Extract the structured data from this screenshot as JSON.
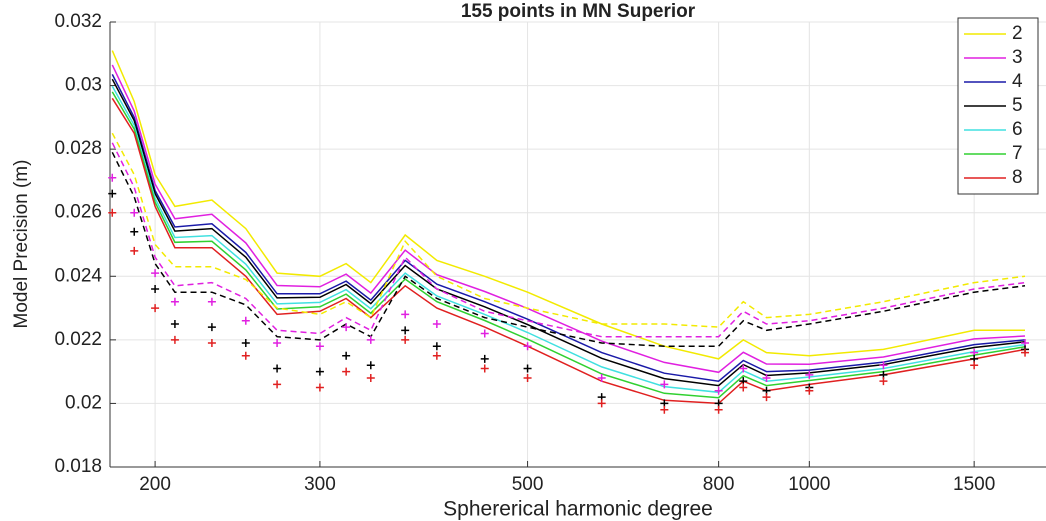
{
  "chart_data": {
    "type": "line",
    "title": "155 points in MN Superior",
    "xlabel": "Sphererical harmonic degree",
    "ylabel": "Model Precision (m)",
    "xscale": "log",
    "grid": true,
    "legend": "upper right",
    "x": [
      180,
      190,
      200,
      210,
      230,
      250,
      270,
      300,
      320,
      340,
      370,
      400,
      450,
      500,
      600,
      700,
      800,
      850,
      900,
      1000,
      1200,
      1500,
      1700
    ],
    "xlim": [
      179,
      1790
    ],
    "xticks": [
      200,
      300,
      500,
      800,
      1000,
      1500
    ],
    "ylim": [
      0.018,
      0.032
    ],
    "yticks": [
      0.018,
      0.02,
      0.022,
      0.024,
      0.026,
      0.028,
      0.03,
      0.032
    ],
    "series": [
      {
        "name": "2",
        "color": "#f2ea00",
        "style": "solid",
        "values": [
          0.0311,
          0.0295,
          0.0272,
          0.0262,
          0.0264,
          0.0255,
          0.0241,
          0.024,
          0.0244,
          0.0238,
          0.0253,
          0.0245,
          0.024,
          0.0235,
          0.0225,
          0.0218,
          0.0214,
          0.022,
          0.0216,
          0.0215,
          0.0217,
          0.0223,
          0.0223
        ]
      },
      {
        "name": "3",
        "color": "#e020e0",
        "style": "solid",
        "values": [
          0.03065,
          0.0292,
          0.0269,
          0.02581,
          0.02595,
          0.02505,
          0.02371,
          0.02367,
          0.02407,
          0.02347,
          0.02482,
          0.02405,
          0.02352,
          0.02299,
          0.02196,
          0.02129,
          0.02098,
          0.02161,
          0.02124,
          0.02123,
          0.02146,
          0.02203,
          0.02212
        ]
      },
      {
        "name": "4",
        "color": "#1a1aa8",
        "style": "solid",
        "values": [
          0.03035,
          0.029,
          0.0267,
          0.02555,
          0.02565,
          0.02475,
          0.02345,
          0.02345,
          0.02385,
          0.02325,
          0.0245,
          0.02375,
          0.0232,
          0.02265,
          0.0216,
          0.02095,
          0.0207,
          0.02135,
          0.021,
          0.02105,
          0.0213,
          0.02185,
          0.022
        ]
      },
      {
        "name": "5",
        "color": "#000000",
        "style": "solid",
        "values": [
          0.0302,
          0.0289,
          0.0266,
          0.02542,
          0.0255,
          0.0246,
          0.02332,
          0.02334,
          0.02374,
          0.02314,
          0.02434,
          0.0236,
          0.02304,
          0.02248,
          0.02142,
          0.02078,
          0.02056,
          0.02122,
          0.02088,
          0.02096,
          0.02122,
          0.02176,
          0.02194
        ]
      },
      {
        "name": "6",
        "color": "#40e0e0",
        "style": "solid",
        "values": [
          0.02998,
          0.02875,
          0.02645,
          0.02522,
          0.02528,
          0.02438,
          0.02313,
          0.02318,
          0.02358,
          0.02298,
          0.0241,
          0.02338,
          0.0228,
          0.02223,
          0.02115,
          0.02053,
          0.02035,
          0.02103,
          0.0207,
          0.02083,
          0.0211,
          0.02163,
          0.02185
        ]
      },
      {
        "name": "7",
        "color": "#30d030",
        "style": "solid",
        "values": [
          0.0298,
          0.02863,
          0.02633,
          0.02507,
          0.0251,
          0.0242,
          0.02297,
          0.02304,
          0.02344,
          0.02284,
          0.02391,
          0.0232,
          0.02261,
          0.02202,
          0.02093,
          0.02032,
          0.02018,
          0.02087,
          0.02056,
          0.02072,
          0.021,
          0.02152,
          0.02178
        ]
      },
      {
        "name": "8",
        "color": "#e02020",
        "style": "solid",
        "values": [
          0.0296,
          0.0285,
          0.0262,
          0.0249,
          0.0249,
          0.024,
          0.0228,
          0.0229,
          0.0233,
          0.0227,
          0.0237,
          0.023,
          0.0224,
          0.0218,
          0.0207,
          0.0201,
          0.02,
          0.0207,
          0.0204,
          0.0206,
          0.0209,
          0.0214,
          0.0217
        ]
      },
      {
        "color": "#f2ea00",
        "style": "dashed",
        "values": [
          0.0285,
          0.0272,
          0.025,
          0.0243,
          0.0243,
          0.0239,
          0.023,
          0.0228,
          0.0232,
          0.0227,
          0.0251,
          0.024,
          0.0233,
          0.023,
          0.0225,
          0.0225,
          0.0224,
          0.0232,
          0.0227,
          0.0228,
          0.0232,
          0.0238,
          0.024
        ]
      },
      {
        "color": "#e020e0",
        "style": "dashed",
        "values": [
          0.0282,
          0.0268,
          0.0246,
          0.0237,
          0.0238,
          0.0233,
          0.0223,
          0.0222,
          0.0227,
          0.0223,
          0.0246,
          0.0236,
          0.0229,
          0.0226,
          0.0221,
          0.0221,
          0.0221,
          0.0229,
          0.0225,
          0.0226,
          0.023,
          0.0236,
          0.0238
        ]
      },
      {
        "color": "#000000",
        "style": "dashed",
        "values": [
          0.0279,
          0.0265,
          0.0244,
          0.0235,
          0.0235,
          0.0231,
          0.0221,
          0.022,
          0.0225,
          0.0221,
          0.024,
          0.0233,
          0.0227,
          0.0224,
          0.0219,
          0.0218,
          0.0218,
          0.0226,
          0.0223,
          0.0225,
          0.0229,
          0.0235,
          0.0237
        ]
      },
      {
        "color": "#e020e0",
        "style": "plus",
        "values": [
          0.0271,
          0.026,
          0.0241,
          0.0232,
          0.0232,
          0.0226,
          0.0219,
          0.0218,
          0.0224,
          0.022,
          0.0228,
          0.0225,
          0.0222,
          0.0218,
          0.0208,
          0.0206,
          0.0204,
          0.0211,
          0.0208,
          0.0209,
          0.0212,
          0.0216,
          0.0219
        ]
      },
      {
        "color": "#000000",
        "style": "plus",
        "values": [
          0.0266,
          0.0254,
          0.0236,
          0.0225,
          0.0224,
          0.0219,
          0.0211,
          0.021,
          0.0215,
          0.0212,
          0.0223,
          0.0218,
          0.0214,
          0.0211,
          0.0202,
          0.02,
          0.02,
          0.0207,
          0.0204,
          0.0205,
          0.0209,
          0.0214,
          0.0217
        ]
      },
      {
        "color": "#e02020",
        "style": "plus",
        "values": [
          0.026,
          0.0248,
          0.023,
          0.022,
          0.0219,
          0.0215,
          0.0206,
          0.0205,
          0.021,
          0.0208,
          0.022,
          0.0215,
          0.0211,
          0.0208,
          0.02,
          0.0198,
          0.0198,
          0.0205,
          0.0202,
          0.0204,
          0.0207,
          0.0212,
          0.0216
        ]
      }
    ]
  }
}
